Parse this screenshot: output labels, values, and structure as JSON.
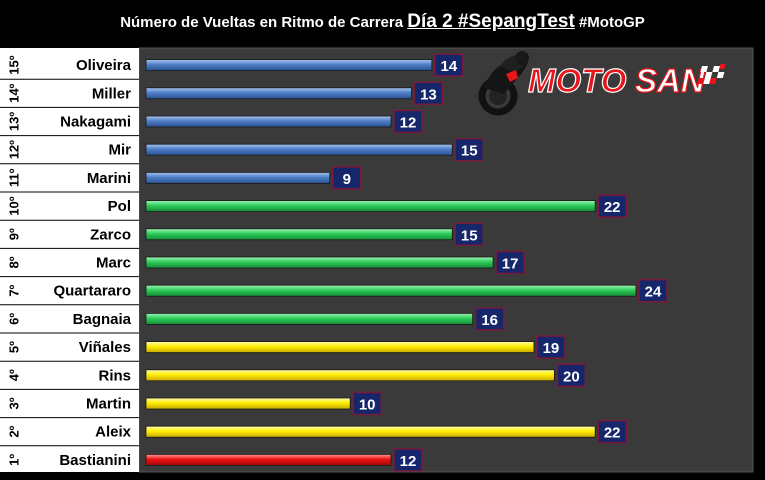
{
  "title": {
    "part1": "Número de Vueltas en Ritmo de Carrera",
    "part2": "Día 2 #SepangTest",
    "part3": "#MotoGP"
  },
  "logo": {
    "text_moto": "MOTO",
    "text_san": "SAN",
    "icon": "motorcycle-rider-icon"
  },
  "colors": {
    "background": "#000000",
    "plot_bg": "#3a3a3a",
    "blue": "#4f7fc8",
    "green": "#2ecc5a",
    "yellow": "#ffee00",
    "red": "#ee1111",
    "value_box": "#16266a",
    "logo_red": "#e8151b"
  },
  "chart_data": {
    "type": "bar",
    "orientation": "horizontal",
    "xlim": [
      0,
      27
    ],
    "grid": false,
    "rows": [
      {
        "pos": "15º",
        "name": "Oliveira",
        "value": 14,
        "color": "blue"
      },
      {
        "pos": "14º",
        "name": "Miller",
        "value": 13,
        "color": "blue"
      },
      {
        "pos": "13º",
        "name": "Nakagami",
        "value": 12,
        "color": "blue"
      },
      {
        "pos": "12º",
        "name": "Mir",
        "value": 15,
        "color": "blue"
      },
      {
        "pos": "11º",
        "name": "Marini",
        "value": 9,
        "color": "blue"
      },
      {
        "pos": "10º",
        "name": "Pol",
        "value": 22,
        "color": "green"
      },
      {
        "pos": "9º",
        "name": "Zarco",
        "value": 15,
        "color": "green"
      },
      {
        "pos": "8º",
        "name": "Marc",
        "value": 17,
        "color": "green"
      },
      {
        "pos": "7º",
        "name": "Quartararo",
        "value": 24,
        "color": "green"
      },
      {
        "pos": "6º",
        "name": "Bagnaia",
        "value": 16,
        "color": "green"
      },
      {
        "pos": "5º",
        "name": "Viñales",
        "value": 19,
        "color": "yellow"
      },
      {
        "pos": "4º",
        "name": "Rins",
        "value": 20,
        "color": "yellow"
      },
      {
        "pos": "3º",
        "name": "Martin",
        "value": 10,
        "color": "yellow"
      },
      {
        "pos": "2º",
        "name": "Aleix",
        "value": 22,
        "color": "yellow"
      },
      {
        "pos": "1º",
        "name": "Bastianini",
        "value": 12,
        "color": "red"
      }
    ]
  }
}
